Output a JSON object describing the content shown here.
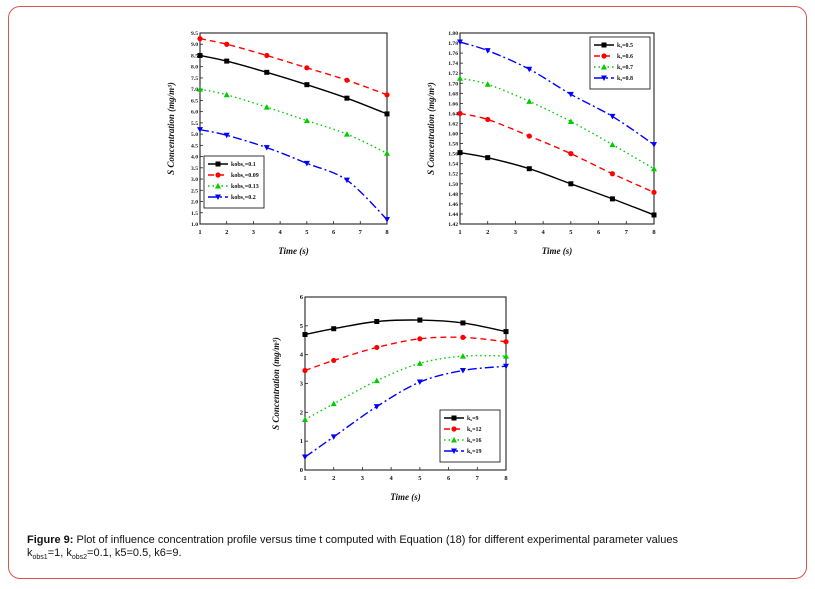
{
  "chart_data": [
    {
      "type": "line",
      "title": "",
      "xlabel": "Time (s)",
      "ylabel": "S Concentration (mg/m³)",
      "xlim": [
        1,
        8
      ],
      "ylim": [
        1.0,
        9.5
      ],
      "xticks": [
        "1",
        "2",
        "3",
        "4",
        "5",
        "6",
        "7",
        "8"
      ],
      "yticks": [
        "1.0",
        "1.5",
        "2.0",
        "2.5",
        "3.0",
        "3.5",
        "4.0",
        "4.5",
        "5.0",
        "5.5",
        "6.0",
        "6.5",
        "7.0",
        "7.5",
        "8.0",
        "8.5",
        "9.0",
        "9.5"
      ],
      "legend_position": "bottom-left",
      "series": [
        {
          "name": "kobs₁=0.1",
          "color": "#000000",
          "dash": "",
          "marker": "square",
          "x": [
            1,
            2,
            3.5,
            5,
            6.5,
            8
          ],
          "y": [
            8.5,
            8.25,
            7.75,
            7.2,
            6.6,
            5.9
          ]
        },
        {
          "name": "kobs₁=0.09",
          "color": "#ff0000",
          "dash": "6,4",
          "marker": "circle",
          "x": [
            1,
            2,
            3.5,
            5,
            6.5,
            8
          ],
          "y": [
            9.25,
            9.0,
            8.5,
            7.95,
            7.4,
            6.75
          ]
        },
        {
          "name": "kobs₁=0.13",
          "color": "#00cc00",
          "dash": "1.5,3",
          "marker": "triangle-up",
          "x": [
            1,
            2,
            3.5,
            5,
            6.5,
            8
          ],
          "y": [
            7.0,
            6.75,
            6.2,
            5.6,
            5.0,
            4.15
          ]
        },
        {
          "name": "kobs₁=0.2",
          "color": "#0000ff",
          "dash": "9,3,2,3",
          "marker": "triangle-down",
          "x": [
            1,
            2,
            3.5,
            5,
            6.5,
            8
          ],
          "y": [
            5.2,
            4.95,
            4.4,
            3.7,
            2.95,
            1.2
          ]
        }
      ]
    },
    {
      "type": "line",
      "title": "",
      "xlabel": "Time (s)",
      "ylabel": "S Concentration (mg/m³)",
      "xlim": [
        1,
        8
      ],
      "ylim": [
        1.42,
        1.8
      ],
      "xticks": [
        "1",
        "2",
        "3",
        "4",
        "5",
        "6",
        "7",
        "8"
      ],
      "yticks": [
        "1.42",
        "1.44",
        "1.46",
        "1.48",
        "1.50",
        "1.52",
        "1.54",
        "1.56",
        "1.58",
        "1.60",
        "1.62",
        "1.64",
        "1.66",
        "1.68",
        "1.70",
        "1.72",
        "1.74",
        "1.76",
        "1.78",
        "1.80"
      ],
      "legend_position": "top-right",
      "series": [
        {
          "name": "k₅=0.5",
          "color": "#000000",
          "dash": "",
          "marker": "square",
          "x": [
            1,
            2,
            3.5,
            5,
            6.5,
            8
          ],
          "y": [
            1.562,
            1.552,
            1.53,
            1.5,
            1.47,
            1.438
          ]
        },
        {
          "name": "k₅=0.6",
          "color": "#ff0000",
          "dash": "6,4",
          "marker": "circle",
          "x": [
            1,
            2,
            3.5,
            5,
            6.5,
            8
          ],
          "y": [
            1.64,
            1.628,
            1.595,
            1.56,
            1.52,
            1.483
          ]
        },
        {
          "name": "k₅=0.7",
          "color": "#00cc00",
          "dash": "1.5,3",
          "marker": "triangle-up",
          "x": [
            1,
            2,
            3.5,
            5,
            6.5,
            8
          ],
          "y": [
            1.71,
            1.698,
            1.664,
            1.624,
            1.578,
            1.53
          ]
        },
        {
          "name": "k₅=0.8",
          "color": "#0000ff",
          "dash": "9,3,2,3",
          "marker": "triangle-down",
          "x": [
            1,
            2,
            3.5,
            5,
            6.5,
            8
          ],
          "y": [
            1.782,
            1.765,
            1.728,
            1.678,
            1.634,
            1.578
          ]
        }
      ]
    },
    {
      "type": "line",
      "title": "",
      "xlabel": "Time (s)",
      "ylabel": "S Concentration (mg/m³)",
      "xlim": [
        1,
        8
      ],
      "ylim": [
        0,
        6
      ],
      "xticks": [
        "1",
        "2",
        "3",
        "4",
        "5",
        "6",
        "7",
        "8"
      ],
      "yticks": [
        "0",
        "1",
        "2",
        "3",
        "4",
        "5",
        "6"
      ],
      "legend_position": "bottom-right",
      "series": [
        {
          "name": "k₆=9",
          "color": "#000000",
          "dash": "",
          "marker": "square",
          "x": [
            1,
            2,
            3.5,
            5,
            6.5,
            8
          ],
          "y": [
            4.7,
            4.9,
            5.15,
            5.2,
            5.1,
            4.8
          ]
        },
        {
          "name": "k₆=12",
          "color": "#ff0000",
          "dash": "6,4",
          "marker": "circle",
          "x": [
            1,
            2,
            3.5,
            5,
            6.5,
            8
          ],
          "y": [
            3.45,
            3.8,
            4.25,
            4.55,
            4.6,
            4.45
          ]
        },
        {
          "name": "k₆=16",
          "color": "#00cc00",
          "dash": "1.5,3",
          "marker": "triangle-up",
          "x": [
            1,
            2,
            3.5,
            5,
            6.5,
            8
          ],
          "y": [
            1.75,
            2.3,
            3.1,
            3.7,
            3.95,
            3.95
          ]
        },
        {
          "name": "k₆=19",
          "color": "#0000ff",
          "dash": "9,3,2,3",
          "marker": "triangle-down",
          "x": [
            1,
            2,
            3.5,
            5,
            6.5,
            8
          ],
          "y": [
            0.45,
            1.15,
            2.2,
            3.05,
            3.45,
            3.6
          ]
        }
      ]
    }
  ],
  "caption": {
    "label": "Figure 9:",
    "text": "Plot of influence concentration profile versus time t computed with Equation (18) for different experimental parameter values",
    "line2_a": "k",
    "line2_sub1": "obs1",
    "line2_b": "=1, k",
    "line2_sub2": "obs2",
    "line2_c": "=0.1, k5=0.5, k6=9."
  }
}
